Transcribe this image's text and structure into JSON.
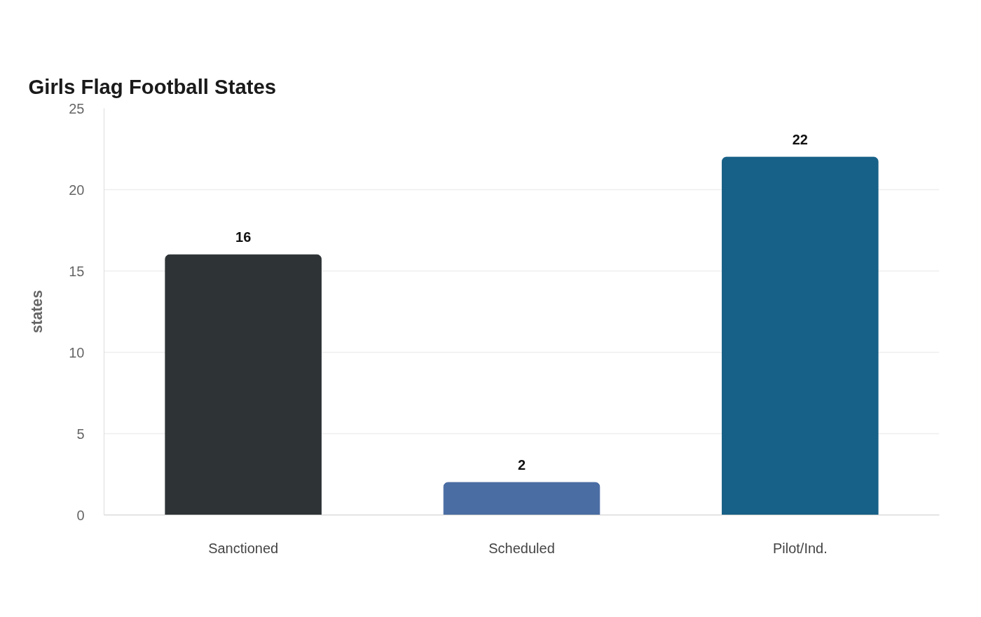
{
  "chart_data": {
    "type": "bar",
    "title": "Girls Flag Football States",
    "ylabel": "states",
    "categories": [
      "Sanctioned",
      "Scheduled",
      "Pilot/Ind."
    ],
    "values": [
      16,
      2,
      22
    ],
    "colors": [
      "#2e3436",
      "#4a6da3",
      "#176087"
    ],
    "ylim": [
      0,
      25
    ],
    "yticks": [
      0,
      5,
      10,
      15,
      20,
      25
    ],
    "grid": "y",
    "data_labels": true
  }
}
